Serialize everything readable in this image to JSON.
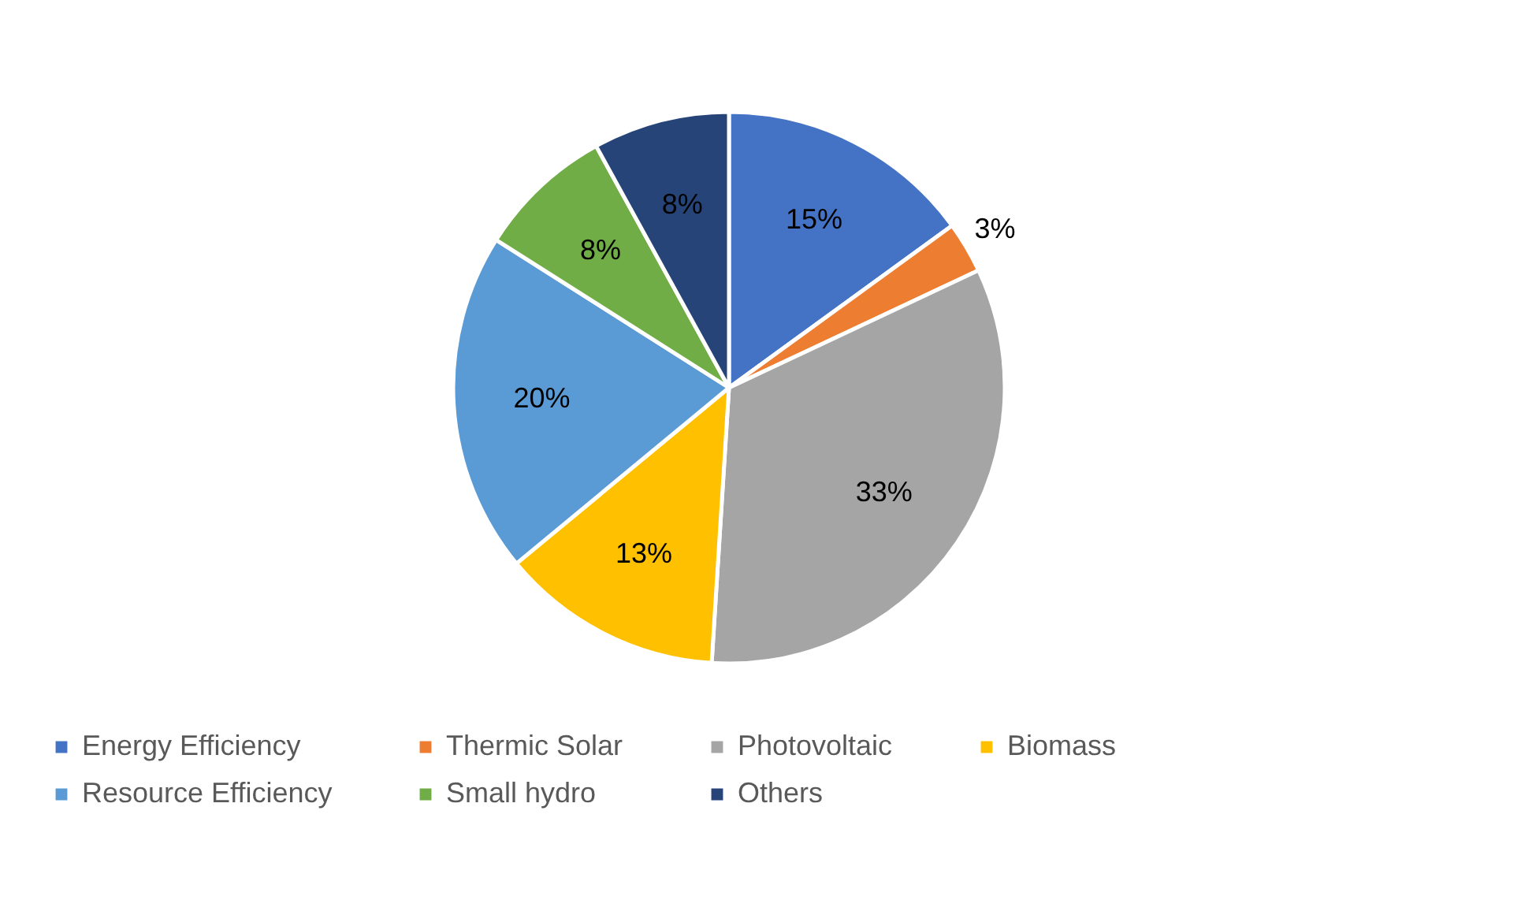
{
  "chart_data": {
    "type": "pie",
    "categories": [
      "Energy Efficiency",
      "Thermic Solar",
      "Photovoltaic",
      "Biomass",
      "Resource Efficiency",
      "Small hydro",
      "Others"
    ],
    "values": [
      15,
      3,
      33,
      13,
      20,
      8,
      8
    ],
    "colors": [
      "#4472c4",
      "#ed7d31",
      "#a5a5a5",
      "#ffc000",
      "#5b9bd5",
      "#70ad47",
      "#264478"
    ],
    "value_labels": [
      "15%",
      "3%",
      "33%",
      "13%",
      "20%",
      "8%",
      "8%"
    ],
    "legend": "bottom"
  }
}
